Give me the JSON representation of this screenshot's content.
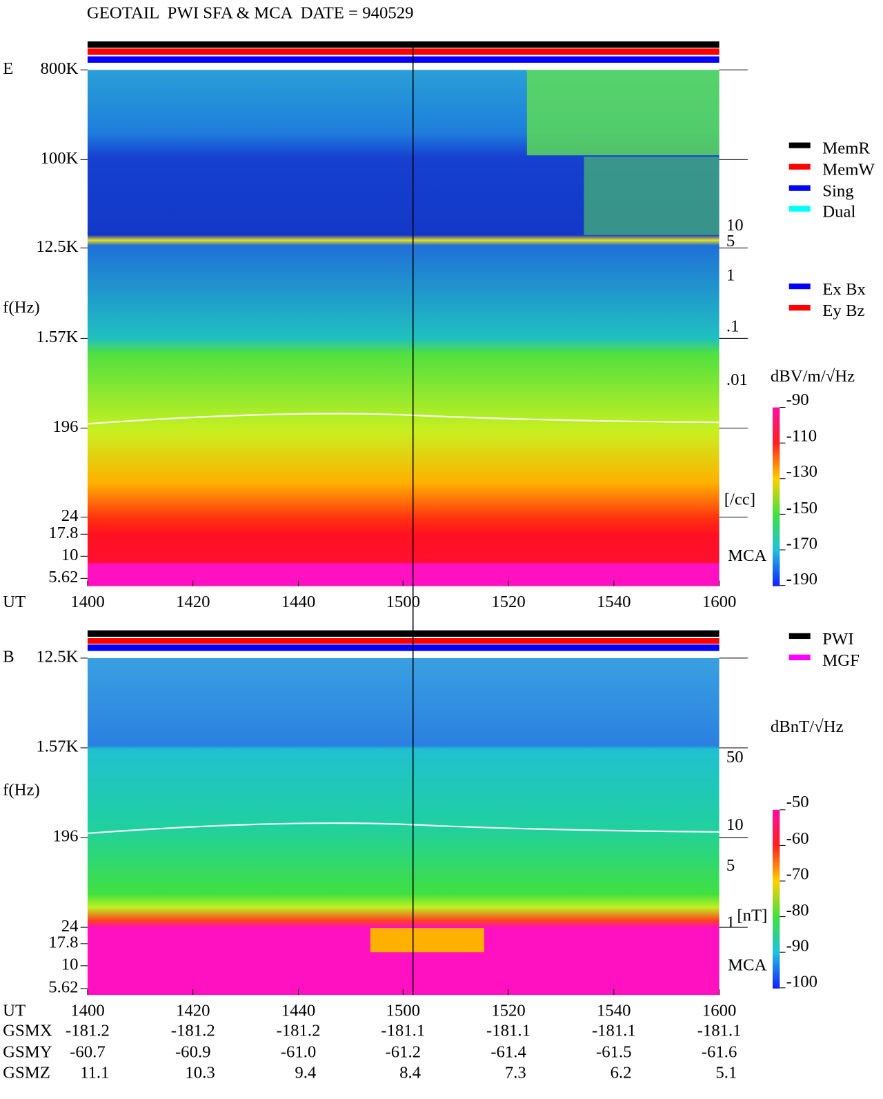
{
  "title": "GEOTAIL  PWI SFA & MCA  DATE = 940529",
  "panels": [
    {
      "label": "E",
      "freq_ticks": [
        "800K",
        "100K",
        "12.5K",
        "1.57K",
        "196",
        "24",
        "17.8",
        "10",
        "5.62"
      ],
      "freq_axis_label": "f(Hz)",
      "time_label": "UT",
      "time_ticks": [
        "1400",
        "1420",
        "1440",
        "1500",
        "1520",
        "1540",
        "1600"
      ],
      "right_labels": [
        "10",
        "5",
        "1",
        ".1",
        ".01",
        "[/cc]"
      ],
      "mca_label": "MCA",
      "legend": [
        {
          "name": "MemR",
          "color": "#000000"
        },
        {
          "name": "MemW",
          "color": "#ff0000"
        },
        {
          "name": "Sing",
          "color": "#0000ff"
        },
        {
          "name": "Dual",
          "color": "#00ffff"
        },
        {
          "name": "Ex Bx",
          "color": "#0000ff"
        },
        {
          "name": "Ey Bz",
          "color": "#ff0000"
        }
      ],
      "colorbar": {
        "unit": "dBV/m/√Hz",
        "ticks": [
          "-90",
          "-110",
          "-130",
          "-150",
          "-170",
          "-190"
        ]
      }
    },
    {
      "label": "B",
      "freq_ticks": [
        "12.5K",
        "1.57K",
        "196",
        "24",
        "17.8",
        "10",
        "5.62"
      ],
      "freq_axis_label": "f(Hz)",
      "time_label": "UT",
      "time_ticks": [
        "1400",
        "1420",
        "1440",
        "1500",
        "1520",
        "1540",
        "1600"
      ],
      "right_labels": [
        "50",
        "10",
        "5",
        "1",
        "[nT]"
      ],
      "mca_label": "MCA",
      "legend": [
        {
          "name": "PWI",
          "color": "#000000"
        },
        {
          "name": "MGF",
          "color": "#ff00ff"
        }
      ],
      "colorbar": {
        "unit": "dBnT/√Hz",
        "ticks": [
          "-50",
          "-60",
          "-70",
          "-80",
          "-90",
          "-100"
        ]
      }
    }
  ],
  "gsm": [
    {
      "label": "GSMX",
      "values": [
        "-181.2",
        "-181.2",
        "-181.2",
        "-181.1",
        "-181.1",
        "-181.1",
        "-181.1"
      ]
    },
    {
      "label": "GSMY",
      "values": [
        "-60.7",
        "-60.9",
        "-61.0",
        "-61.2",
        "-61.4",
        "-61.5",
        "-61.6"
      ]
    },
    {
      "label": "GSMZ",
      "values": [
        "11.1",
        "10.3",
        "9.4",
        "8.4",
        "7.3",
        "6.2",
        "5.1"
      ]
    }
  ]
}
